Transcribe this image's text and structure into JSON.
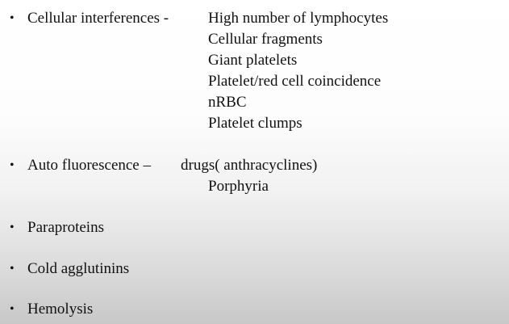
{
  "bullet_symbol": "•",
  "items": [
    {
      "label": "Cellular interferences -",
      "subitems": [
        "High number of lymphocytes",
        "Cellular fragments",
        "Giant platelets",
        "Platelet/red cell coincidence",
        "nRBC",
        "Platelet clumps"
      ]
    },
    {
      "label": "Auto fluorescence –",
      "subitems": [
        "drugs( anthracyclines)",
        "Porphyria"
      ]
    },
    {
      "label": "Paraproteins"
    },
    {
      "label": "Cold agglutinins"
    },
    {
      "label": "Hemolysis"
    }
  ]
}
